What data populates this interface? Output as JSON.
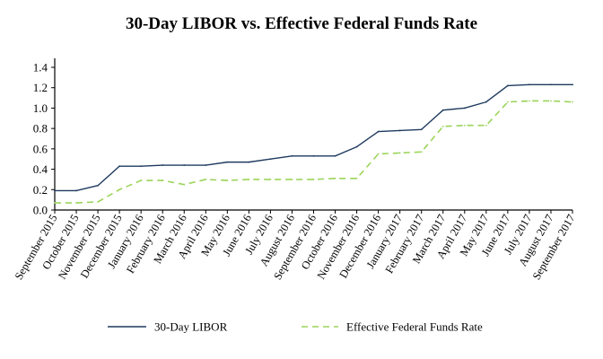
{
  "chart_data": {
    "type": "line",
    "title": "30-Day LIBOR vs. Effective Federal Funds Rate",
    "xlabel": "",
    "ylabel": "",
    "ylim": [
      0,
      1.4
    ],
    "yticks": [
      "0.0",
      "0.2",
      "0.4",
      "0.6",
      "0.8",
      "1.0",
      "1.2",
      "1.4"
    ],
    "grid": false,
    "legend_position": "bottom",
    "categories": [
      "September 2015",
      "October 2015",
      "November 2015",
      "December 2015",
      "January 2016",
      "February 2016",
      "March 2016",
      "April 2016",
      "May 2016",
      "June 2016",
      "July 2016",
      "August 2016",
      "September 2016",
      "October 2016",
      "November 2016",
      "December 2016",
      "January 2017",
      "February 2017",
      "March 2017",
      "April 2017",
      "May 2017",
      "June 2017",
      "July 2017",
      "August 2017",
      "September 2017"
    ],
    "series": [
      {
        "name": "30-Day LIBOR",
        "color": "#1f3a5f",
        "style": "solid",
        "values": [
          0.19,
          0.19,
          0.24,
          0.43,
          0.43,
          0.44,
          0.44,
          0.44,
          0.47,
          0.47,
          0.5,
          0.53,
          0.53,
          0.53,
          0.62,
          0.77,
          0.78,
          0.79,
          0.98,
          1.0,
          1.06,
          1.22,
          1.23,
          1.23,
          1.23
        ]
      },
      {
        "name": "Effective Federal Funds Rate",
        "color": "#9bd45a",
        "style": "dashed",
        "values": [
          0.07,
          0.07,
          0.08,
          0.2,
          0.29,
          0.29,
          0.25,
          0.3,
          0.29,
          0.3,
          0.3,
          0.3,
          0.3,
          0.31,
          0.31,
          0.55,
          0.56,
          0.57,
          0.82,
          0.83,
          0.83,
          1.06,
          1.07,
          1.07,
          1.06
        ]
      }
    ]
  }
}
